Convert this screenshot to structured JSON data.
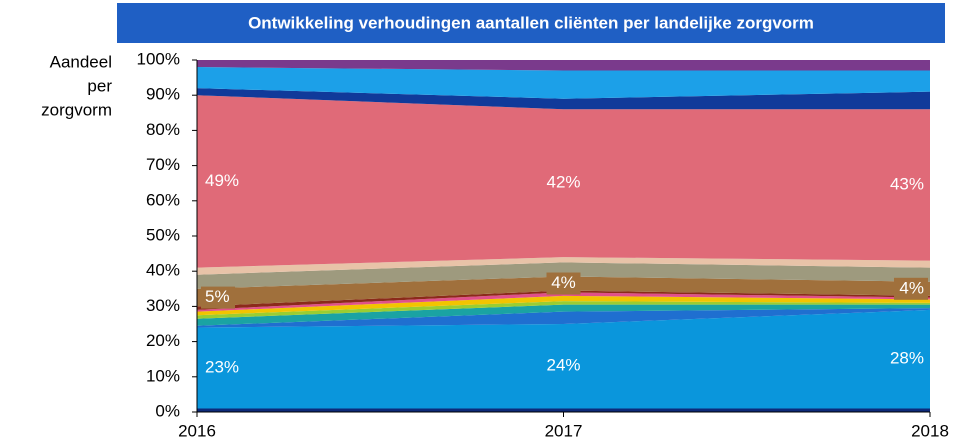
{
  "chart_data": {
    "type": "stacked_area_100",
    "title": "Ontwikkeling verhoudingen aantallen cliënten per landelijke zorgvorm",
    "y_label": [
      "Aandeel",
      "per",
      "zorgvorm"
    ],
    "categories": [
      "2016",
      "2017",
      "2018"
    ],
    "ylim": [
      0,
      100
    ],
    "yticks": [
      {
        "value": 0,
        "label": "0%"
      },
      {
        "value": 10,
        "label": "10%"
      },
      {
        "value": 20,
        "label": "20%"
      },
      {
        "value": 30,
        "label": "30%"
      },
      {
        "value": 40,
        "label": "40%"
      },
      {
        "value": 50,
        "label": "50%"
      },
      {
        "value": 60,
        "label": "60%"
      },
      {
        "value": 70,
        "label": "70%"
      },
      {
        "value": 80,
        "label": "80%"
      },
      {
        "value": 90,
        "label": "90%"
      },
      {
        "value": 100,
        "label": "100%"
      }
    ],
    "series": [
      {
        "color": "#0d2a7a",
        "values": [
          1,
          1,
          1
        ]
      },
      {
        "color": "#0a96dc",
        "values": [
          23,
          24,
          28
        ],
        "value_labels": [
          "23%",
          "24%",
          "28%"
        ]
      },
      {
        "color": "#1f6fd0",
        "values": [
          0.5,
          3.5,
          0.5
        ]
      },
      {
        "color": "#1aa3a3",
        "values": [
          2,
          2,
          1
        ]
      },
      {
        "color": "#9acd32",
        "values": [
          1,
          1,
          0.5
        ]
      },
      {
        "color": "#f2c400",
        "values": [
          1,
          1.5,
          1
        ]
      },
      {
        "color": "#e0508a",
        "values": [
          0.5,
          1,
          0.5
        ]
      },
      {
        "color": "#8b2a1a",
        "values": [
          1,
          0.5,
          0.5
        ]
      },
      {
        "color": "#a0703c",
        "values": [
          5,
          4,
          4
        ],
        "value_labels": [
          "5%",
          "4%",
          "4%"
        ],
        "label_box": true
      },
      {
        "color": "#9e9a7e",
        "values": [
          4,
          4,
          4
        ]
      },
      {
        "color": "#e8c3a8",
        "values": [
          2,
          1.5,
          2
        ]
      },
      {
        "color": "#e06a78",
        "values": [
          49,
          42,
          43
        ],
        "value_labels": [
          "49%",
          "42%",
          "43%"
        ]
      },
      {
        "color": "#103a9a",
        "values": [
          2,
          3,
          5
        ]
      },
      {
        "color": "#1ca0e8",
        "values": [
          6,
          8,
          6
        ]
      },
      {
        "color": "#7a3a8c",
        "values": [
          2,
          3,
          3
        ]
      }
    ]
  }
}
